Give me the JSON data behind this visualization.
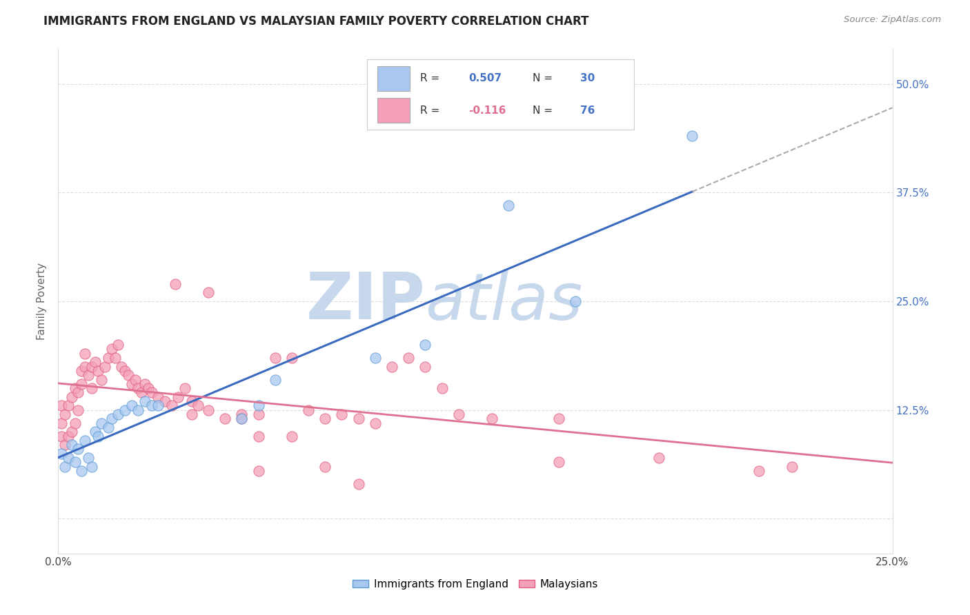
{
  "title": "IMMIGRANTS FROM ENGLAND VS MALAYSIAN FAMILY POVERTY CORRELATION CHART",
  "source": "Source: ZipAtlas.com",
  "ylabel": "Family Poverty",
  "x_ticks": [
    0.0,
    0.05,
    0.1,
    0.15,
    0.2,
    0.25
  ],
  "x_tick_labels": [
    "0.0%",
    "",
    "",
    "",
    "",
    "25.0%"
  ],
  "y_ticks": [
    0.0,
    0.125,
    0.25,
    0.375,
    0.5
  ],
  "y_tick_labels_right": [
    "",
    "12.5%",
    "25.0%",
    "37.5%",
    "50.0%"
  ],
  "xlim": [
    0.0,
    0.25
  ],
  "ylim": [
    -0.04,
    0.54
  ],
  "england_color": "#a8c8f0",
  "england_edge_color": "#5b9bd5",
  "malaysian_color": "#f4a0b8",
  "malaysian_edge_color": "#e06080",
  "trend_england_color": "#3a6abf",
  "trend_malaysia_color": "#e07090",
  "trend_dash_color": "#aaaaaa",
  "legend_box_color": "#f0f4f8",
  "legend_border_color": "#cccccc",
  "background_color": "#ffffff",
  "grid_color": "#dddddd",
  "watermark_zip": "ZIP",
  "watermark_atlas": "atlas",
  "watermark_color": "#c8d8ec",
  "right_tick_color": "#4472c4",
  "england_x": [
    0.001,
    0.002,
    0.003,
    0.004,
    0.005,
    0.006,
    0.007,
    0.008,
    0.009,
    0.01,
    0.011,
    0.012,
    0.013,
    0.015,
    0.016,
    0.018,
    0.02,
    0.022,
    0.024,
    0.026,
    0.028,
    0.03,
    0.055,
    0.06,
    0.065,
    0.095,
    0.11,
    0.135,
    0.155,
    0.19
  ],
  "england_y": [
    0.075,
    0.06,
    0.07,
    0.085,
    0.065,
    0.08,
    0.055,
    0.09,
    0.07,
    0.06,
    0.1,
    0.095,
    0.11,
    0.105,
    0.115,
    0.12,
    0.125,
    0.13,
    0.125,
    0.135,
    0.13,
    0.13,
    0.115,
    0.13,
    0.16,
    0.185,
    0.2,
    0.36,
    0.25,
    0.44
  ],
  "malaysia_x": [
    0.001,
    0.001,
    0.001,
    0.002,
    0.002,
    0.003,
    0.003,
    0.004,
    0.004,
    0.005,
    0.005,
    0.006,
    0.006,
    0.007,
    0.007,
    0.008,
    0.008,
    0.009,
    0.01,
    0.01,
    0.011,
    0.012,
    0.013,
    0.014,
    0.015,
    0.016,
    0.017,
    0.018,
    0.019,
    0.02,
    0.021,
    0.022,
    0.023,
    0.024,
    0.025,
    0.026,
    0.027,
    0.028,
    0.03,
    0.032,
    0.034,
    0.036,
    0.038,
    0.04,
    0.042,
    0.045,
    0.05,
    0.055,
    0.06,
    0.065,
    0.07,
    0.075,
    0.08,
    0.085,
    0.09,
    0.095,
    0.1,
    0.105,
    0.11,
    0.115,
    0.12,
    0.13,
    0.035,
    0.04,
    0.045,
    0.055,
    0.06,
    0.07,
    0.08,
    0.09,
    0.15,
    0.18,
    0.21,
    0.22,
    0.15,
    0.06
  ],
  "malaysia_y": [
    0.095,
    0.11,
    0.13,
    0.085,
    0.12,
    0.095,
    0.13,
    0.1,
    0.14,
    0.11,
    0.15,
    0.125,
    0.145,
    0.155,
    0.17,
    0.175,
    0.19,
    0.165,
    0.15,
    0.175,
    0.18,
    0.17,
    0.16,
    0.175,
    0.185,
    0.195,
    0.185,
    0.2,
    0.175,
    0.17,
    0.165,
    0.155,
    0.16,
    0.15,
    0.145,
    0.155,
    0.15,
    0.145,
    0.14,
    0.135,
    0.13,
    0.14,
    0.15,
    0.135,
    0.13,
    0.125,
    0.115,
    0.12,
    0.12,
    0.185,
    0.185,
    0.125,
    0.115,
    0.12,
    0.115,
    0.11,
    0.175,
    0.185,
    0.175,
    0.15,
    0.12,
    0.115,
    0.27,
    0.12,
    0.26,
    0.115,
    0.095,
    0.095,
    0.06,
    0.04,
    0.065,
    0.07,
    0.055,
    0.06,
    0.115,
    0.055
  ]
}
